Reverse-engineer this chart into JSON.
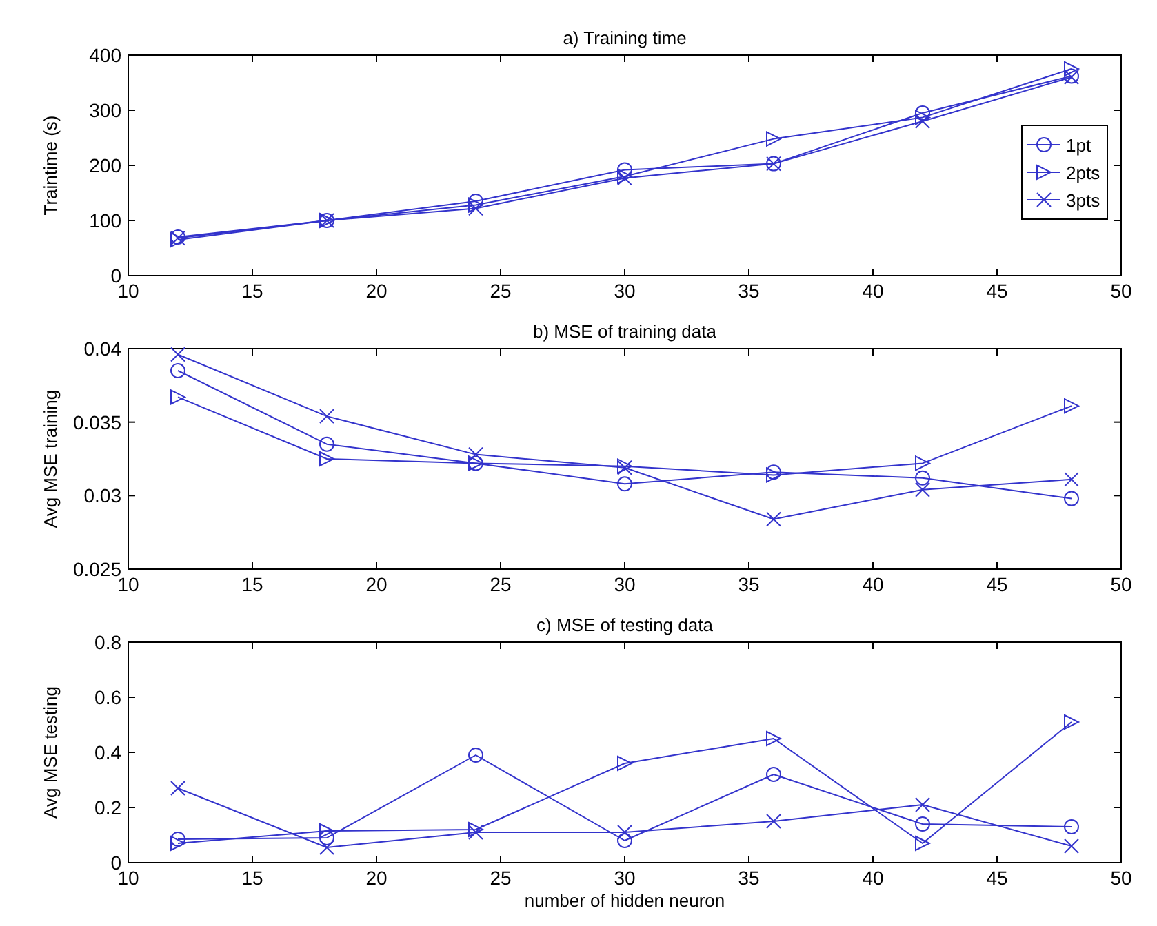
{
  "chart_data": [
    {
      "type": "line",
      "title": "a) Training time",
      "ylabel": "Traintime (s)",
      "x": [
        12,
        18,
        24,
        30,
        36,
        42,
        48
      ],
      "xlim": [
        10,
        50
      ],
      "xticks": [
        10,
        15,
        20,
        25,
        30,
        35,
        40,
        45,
        50
      ],
      "ylim": [
        0,
        400
      ],
      "yticks": [
        0,
        100,
        200,
        300,
        400
      ],
      "legend": "right",
      "series": [
        {
          "name": "1pt",
          "color": "#3333cc",
          "marker": "circle",
          "values": [
            70,
            100,
            135,
            192,
            203,
            295,
            362
          ]
        },
        {
          "name": "2pts",
          "color": "#3333cc",
          "marker": "triangle",
          "values": [
            65,
            100,
            128,
            180,
            248,
            287,
            375
          ]
        },
        {
          "name": "3pts",
          "color": "#3333cc",
          "marker": "cross",
          "values": [
            68,
            100,
            122,
            177,
            203,
            280,
            360
          ]
        }
      ]
    },
    {
      "type": "line",
      "title": "b) MSE of training data",
      "ylabel": "Avg MSE training",
      "x": [
        12,
        18,
        24,
        30,
        36,
        42,
        48
      ],
      "xlim": [
        10,
        50
      ],
      "xticks": [
        10,
        15,
        20,
        25,
        30,
        35,
        40,
        45,
        50
      ],
      "ylim": [
        0.025,
        0.04
      ],
      "yticks": [
        0.025,
        0.03,
        0.035,
        0.04
      ],
      "series": [
        {
          "color": "#3333cc",
          "marker": "circle",
          "values": [
            0.0385,
            0.0335,
            0.0322,
            0.0308,
            0.0316,
            0.0312,
            0.0298
          ]
        },
        {
          "color": "#3333cc",
          "marker": "triangle",
          "values": [
            0.0367,
            0.0325,
            0.0322,
            0.032,
            0.0314,
            0.0322,
            0.0361
          ]
        },
        {
          "color": "#3333cc",
          "marker": "cross",
          "values": [
            0.0396,
            0.0354,
            0.0328,
            0.0319,
            0.0284,
            0.0304,
            0.0311
          ]
        }
      ]
    },
    {
      "type": "line",
      "title": "c) MSE of testing data",
      "xlabel": "number of hidden neuron",
      "ylabel": "Avg MSE testing",
      "x": [
        12,
        18,
        24,
        30,
        36,
        42,
        48
      ],
      "xlim": [
        10,
        50
      ],
      "xticks": [
        10,
        15,
        20,
        25,
        30,
        35,
        40,
        45,
        50
      ],
      "ylim": [
        0,
        0.8
      ],
      "yticks": [
        0,
        0.2,
        0.4,
        0.6,
        0.8
      ],
      "series": [
        {
          "color": "#3333cc",
          "marker": "circle",
          "values": [
            0.085,
            0.09,
            0.39,
            0.08,
            0.32,
            0.14,
            0.13
          ]
        },
        {
          "color": "#3333cc",
          "marker": "triangle",
          "values": [
            0.07,
            0.115,
            0.12,
            0.36,
            0.45,
            0.07,
            0.51
          ]
        },
        {
          "color": "#3333cc",
          "marker": "cross",
          "values": [
            0.27,
            0.055,
            0.11,
            0.11,
            0.15,
            0.21,
            0.06
          ]
        }
      ]
    }
  ]
}
